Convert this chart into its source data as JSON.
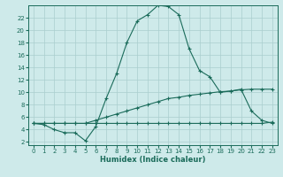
{
  "xlabel": "Humidex (Indice chaleur)",
  "background_color": "#ceeaea",
  "grid_color": "#aacece",
  "line_color": "#1a6b5a",
  "xlim": [
    -0.5,
    23.5
  ],
  "ylim": [
    1.5,
    24.0
  ],
  "xticks": [
    0,
    1,
    2,
    3,
    4,
    5,
    6,
    7,
    8,
    9,
    10,
    11,
    12,
    13,
    14,
    15,
    16,
    17,
    18,
    19,
    20,
    21,
    22,
    23
  ],
  "yticks": [
    2,
    4,
    6,
    8,
    10,
    12,
    14,
    16,
    18,
    20,
    22
  ],
  "curve1_x": [
    0,
    1,
    2,
    3,
    4,
    5,
    6,
    7,
    8,
    9,
    10,
    11,
    12,
    13,
    14,
    15,
    16,
    17,
    18,
    19,
    20,
    21,
    22,
    23
  ],
  "curve1_y": [
    5.0,
    4.8,
    4.0,
    3.5,
    3.5,
    2.2,
    4.5,
    9.0,
    13.0,
    18.0,
    21.5,
    22.5,
    24.0,
    23.8,
    22.5,
    17.0,
    13.5,
    12.5,
    10.0,
    10.2,
    10.5,
    7.0,
    5.5,
    5.0
  ],
  "curve2_x": [
    0,
    1,
    2,
    3,
    4,
    5,
    6,
    7,
    8,
    9,
    10,
    11,
    12,
    13,
    14,
    15,
    16,
    17,
    18,
    19,
    20,
    21,
    22,
    23
  ],
  "curve2_y": [
    5.0,
    5.0,
    5.0,
    5.0,
    5.0,
    5.0,
    5.5,
    6.0,
    6.5,
    7.0,
    7.5,
    8.0,
    8.5,
    9.0,
    9.2,
    9.5,
    9.7,
    9.9,
    10.1,
    10.2,
    10.4,
    10.5,
    10.5,
    10.5
  ],
  "curve3_x": [
    0,
    1,
    2,
    3,
    4,
    5,
    6,
    7,
    8,
    9,
    10,
    11,
    12,
    13,
    14,
    15,
    16,
    17,
    18,
    19,
    20,
    21,
    22,
    23
  ],
  "curve3_y": [
    5.0,
    5.0,
    5.0,
    5.0,
    5.0,
    5.0,
    5.0,
    5.0,
    5.0,
    5.0,
    5.0,
    5.0,
    5.0,
    5.0,
    5.0,
    5.0,
    5.0,
    5.0,
    5.0,
    5.0,
    5.0,
    5.0,
    5.0,
    5.2
  ]
}
